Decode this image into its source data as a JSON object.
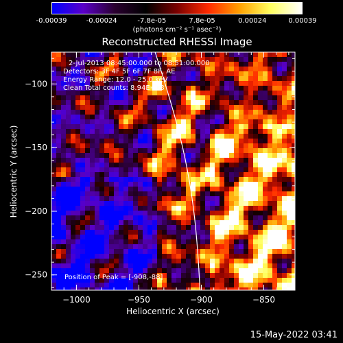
{
  "colorbar": {
    "tick_labels": [
      "-0.00039",
      "-0.00024",
      "-7.8e-05",
      "7.8e-05",
      "0.00024",
      "0.00039"
    ],
    "units": "(photons cm⁻² s⁻¹ asec⁻²)",
    "colors": [
      "#0000ff",
      "#5a00c8",
      "#2a0030",
      "#000000",
      "#7a0000",
      "#ff2a00",
      "#ffa000",
      "#ffff60",
      "#ffffff"
    ]
  },
  "chart_data": {
    "type": "heatmap",
    "title": "Reconstructed RHESSI Image",
    "xlabel": "Heliocentric X (arcsec)",
    "ylabel": "Heliocentric Y (arcsec)",
    "xlim": [
      -1020,
      -825
    ],
    "ylim": [
      -262,
      -75
    ],
    "xticks": [
      -1000,
      -950,
      -900,
      -850
    ],
    "yticks": [
      -100,
      -150,
      -200,
      -250
    ],
    "value_range": [
      -0.00039,
      0.00039
    ],
    "peak": [
      -908,
      -88
    ],
    "annotations": {
      "time": "2-Jul-2013 08:45:00.000 to 08:51:00.000",
      "detectors": "Detectors: 3F 4F 5F 6F 7F 8F, AE",
      "energy": "Energy Range: 12.0 - 25.0 keV",
      "method": "Clean     Total counts: 8.94E+03",
      "peak_text": "Position of Peak = [-908,-88]"
    }
  },
  "footer": {
    "date": "15-May-2022 03:41"
  }
}
